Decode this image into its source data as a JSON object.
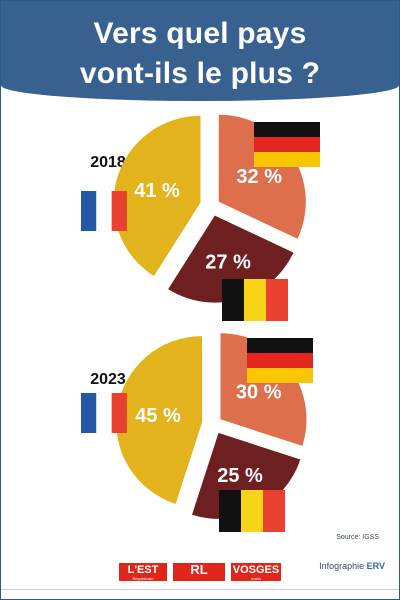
{
  "title": {
    "line1": "Vers quel pays",
    "line2": "vont-ils le plus ?"
  },
  "colors": {
    "header": "#386190",
    "france": "#e2b31d",
    "germany": "#de6f4c",
    "belgium": "#6e1f1f"
  },
  "chart_data": [
    {
      "type": "pie",
      "title": "2018",
      "slices": [
        {
          "country": "France",
          "value": 41,
          "label": "41 %",
          "flag": "flag-france"
        },
        {
          "country": "Allemagne",
          "value": 32,
          "label": "32 %",
          "flag": "flag-germany"
        },
        {
          "country": "Belgique",
          "value": 27,
          "label": "27 %",
          "flag": "flag-belgium"
        }
      ]
    },
    {
      "type": "pie",
      "title": "2023",
      "slices": [
        {
          "country": "France",
          "value": 45,
          "label": "45 %",
          "flag": "flag-france"
        },
        {
          "country": "Allemagne",
          "value": 30,
          "label": "30 %",
          "flag": "flag-germany"
        },
        {
          "country": "Belgique",
          "value": 25,
          "label": "25 %",
          "flag": "flag-belgium"
        }
      ]
    }
  ],
  "source": "Source: IGSS",
  "credit": {
    "prefix": "Infographie",
    "brand": "ERV"
  },
  "logos": {
    "est": "L'EST",
    "est_sub": "Républicain",
    "rl": "RL",
    "vosges": "VOSGES",
    "vosges_sub": "matin"
  }
}
